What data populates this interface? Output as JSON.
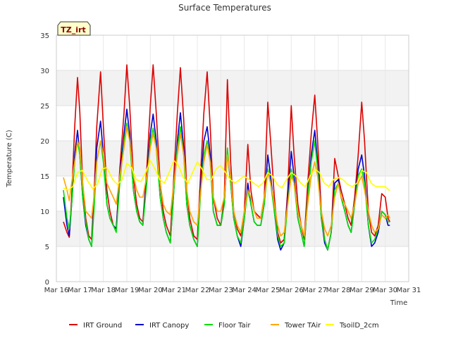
{
  "chart_data": {
    "type": "line",
    "title": "Surface Temperatures",
    "badge": "TZ_irt",
    "xlabel": "Time",
    "ylabel": "Temperature (C)",
    "xlim": [
      16,
      31
    ],
    "ylim": [
      0,
      35
    ],
    "x_ticks": [
      16,
      17,
      18,
      19,
      20,
      21,
      22,
      23,
      24,
      25,
      26,
      27,
      28,
      29,
      30,
      31
    ],
    "x_tick_labels": [
      "Mar 16",
      "Mar 17",
      "Mar 18",
      "Mar 19",
      "Mar 20",
      "Mar 21",
      "Mar 22",
      "Mar 23",
      "Mar 24",
      "Mar 25",
      "Mar 26",
      "Mar 27",
      "Mar 28",
      "Mar 29",
      "Mar 30",
      "Mar 31"
    ],
    "y_ticks": [
      0,
      5,
      10,
      15,
      20,
      25,
      30,
      35
    ],
    "y_tick_labels": [
      "0",
      "5",
      "10",
      "15",
      "20",
      "25",
      "30",
      "35"
    ],
    "grid": true,
    "legend_position": "bottom",
    "series": [
      {
        "name": "IRT Ground",
        "color": "#dd0000",
        "x": [
          16.3,
          16.45,
          16.55,
          16.65,
          16.78,
          16.9,
          17.0,
          17.12,
          17.25,
          17.38,
          17.5,
          17.6,
          17.72,
          17.88,
          18.0,
          18.15,
          18.28,
          18.42,
          18.55,
          18.7,
          18.88,
          19.0,
          19.12,
          19.28,
          19.42,
          19.55,
          19.68,
          19.85,
          20.0,
          20.12,
          20.25,
          20.42,
          20.55,
          20.68,
          20.85,
          21.0,
          21.15,
          21.28,
          21.42,
          21.55,
          21.68,
          21.85,
          22.0,
          22.15,
          22.28,
          22.42,
          22.55,
          22.68,
          22.85,
          23.0,
          23.15,
          23.28,
          23.42,
          23.55,
          23.7,
          23.85,
          24.0,
          24.15,
          24.28,
          24.42,
          24.55,
          24.7,
          24.85,
          25.0,
          25.12,
          25.28,
          25.42,
          25.55,
          25.7,
          25.85,
          26.0,
          26.12,
          26.28,
          26.42,
          26.55,
          26.7,
          26.85,
          27.0,
          27.12,
          27.28,
          27.42,
          27.55,
          27.7,
          27.85,
          28.0,
          28.12,
          28.28,
          28.42,
          28.55,
          28.7,
          28.85,
          29.0,
          29.12,
          29.28,
          29.42,
          29.55,
          29.7,
          29.85,
          30.0,
          30.12,
          30.2
        ],
        "values": [
          8.5,
          7.0,
          6.3,
          12.0,
          22.0,
          29.0,
          24.0,
          14.0,
          9.0,
          6.5,
          6.0,
          12.0,
          22.0,
          29.8,
          22.0,
          13.0,
          10.0,
          8.0,
          7.5,
          16.0,
          24.0,
          30.8,
          25.0,
          15.0,
          11.0,
          9.0,
          8.5,
          16.0,
          25.0,
          30.8,
          24.0,
          14.0,
          10.0,
          8.0,
          6.5,
          15.0,
          24.0,
          30.4,
          23.0,
          13.0,
          9.0,
          6.5,
          6.0,
          16.0,
          24.0,
          29.8,
          22.0,
          12.0,
          9.0,
          8.0,
          12.0,
          28.7,
          17.0,
          10.0,
          7.5,
          6.5,
          10.0,
          19.5,
          13.0,
          10.0,
          9.5,
          9.0,
          12.0,
          25.5,
          20.0,
          12.0,
          7.0,
          5.5,
          6.0,
          13.0,
          25.0,
          18.0,
          11.0,
          8.0,
          6.0,
          14.0,
          21.0,
          26.5,
          20.0,
          10.0,
          6.0,
          4.5,
          7.0,
          17.5,
          15.0,
          13.0,
          11.0,
          9.0,
          8.0,
          12.0,
          18.0,
          25.5,
          20.0,
          10.0,
          7.0,
          6.5,
          8.0,
          12.5,
          12.0,
          9.0,
          8.5
        ]
      },
      {
        "name": "IRT Canopy",
        "color": "#0000cc",
        "x": [
          16.3,
          16.45,
          16.55,
          16.65,
          16.78,
          16.9,
          17.0,
          17.12,
          17.25,
          17.38,
          17.5,
          17.6,
          17.72,
          17.88,
          18.0,
          18.15,
          18.28,
          18.42,
          18.55,
          18.7,
          18.88,
          19.0,
          19.12,
          19.28,
          19.42,
          19.55,
          19.68,
          19.85,
          20.0,
          20.12,
          20.25,
          20.42,
          20.55,
          20.68,
          20.85,
          21.0,
          21.15,
          21.28,
          21.42,
          21.55,
          21.68,
          21.85,
          22.0,
          22.15,
          22.28,
          22.42,
          22.55,
          22.68,
          22.85,
          23.0,
          23.15,
          23.28,
          23.42,
          23.55,
          23.7,
          23.85,
          24.0,
          24.15,
          24.28,
          24.42,
          24.55,
          24.7,
          24.85,
          25.0,
          25.12,
          25.28,
          25.42,
          25.55,
          25.7,
          25.85,
          26.0,
          26.12,
          26.28,
          26.42,
          26.55,
          26.7,
          26.85,
          27.0,
          27.12,
          27.28,
          27.42,
          27.55,
          27.7,
          27.85,
          28.0,
          28.12,
          28.28,
          28.42,
          28.55,
          28.7,
          28.85,
          29.0,
          29.12,
          29.28,
          29.42,
          29.55,
          29.7,
          29.85,
          30.0,
          30.12,
          30.2
        ],
        "values": [
          12.0,
          8.0,
          6.5,
          11.0,
          18.0,
          21.5,
          18.0,
          12.0,
          8.0,
          6.0,
          5.0,
          11.0,
          19.0,
          22.8,
          18.0,
          11.0,
          9.0,
          8.0,
          7.5,
          15.0,
          21.0,
          24.5,
          21.0,
          13.0,
          10.0,
          8.5,
          8.0,
          15.0,
          21.0,
          23.8,
          20.0,
          12.0,
          9.0,
          7.0,
          5.5,
          13.0,
          20.0,
          24.0,
          19.0,
          11.0,
          8.0,
          6.0,
          5.0,
          14.0,
          20.0,
          22.0,
          18.0,
          10.0,
          8.0,
          8.0,
          11.0,
          18.5,
          14.0,
          9.0,
          6.5,
          5.0,
          9.0,
          14.0,
          11.0,
          8.5,
          8.0,
          8.0,
          11.0,
          18.0,
          15.0,
          10.0,
          6.0,
          4.5,
          5.5,
          12.0,
          18.5,
          15.0,
          9.0,
          7.0,
          5.0,
          12.0,
          18.0,
          21.5,
          17.0,
          9.0,
          5.5,
          4.5,
          7.0,
          14.0,
          14.5,
          12.0,
          10.0,
          8.0,
          7.0,
          11.0,
          16.0,
          18.0,
          15.0,
          8.0,
          5.0,
          5.5,
          7.0,
          10.0,
          9.5,
          8.0,
          8.0
        ]
      },
      {
        "name": "Floor Tair",
        "color": "#00dd00",
        "x": [
          16.3,
          16.45,
          16.55,
          16.65,
          16.78,
          16.9,
          17.0,
          17.12,
          17.25,
          17.38,
          17.5,
          17.6,
          17.72,
          17.88,
          18.0,
          18.15,
          18.28,
          18.42,
          18.55,
          18.7,
          18.88,
          19.0,
          19.12,
          19.28,
          19.42,
          19.55,
          19.68,
          19.85,
          20.0,
          20.12,
          20.25,
          20.42,
          20.55,
          20.68,
          20.85,
          21.0,
          21.15,
          21.28,
          21.42,
          21.55,
          21.68,
          21.85,
          22.0,
          22.15,
          22.28,
          22.42,
          22.55,
          22.68,
          22.85,
          23.0,
          23.15,
          23.28,
          23.42,
          23.55,
          23.7,
          23.85,
          24.0,
          24.15,
          24.28,
          24.42,
          24.55,
          24.7,
          24.85,
          25.0,
          25.12,
          25.28,
          25.42,
          25.55,
          25.7,
          25.85,
          26.0,
          26.12,
          26.28,
          26.42,
          26.55,
          26.7,
          26.85,
          27.0,
          27.12,
          27.28,
          27.42,
          27.55,
          27.7,
          27.85,
          28.0,
          28.12,
          28.28,
          28.42,
          28.55,
          28.7,
          28.85,
          29.0,
          29.12,
          29.28,
          29.42,
          29.55,
          29.7,
          29.85,
          30.0,
          30.12,
          30.2
        ],
        "values": [
          13.0,
          9.0,
          7.5,
          11.0,
          17.0,
          20.0,
          18.0,
          12.0,
          8.5,
          6.0,
          5.0,
          10.0,
          17.0,
          20.0,
          17.0,
          11.0,
          9.0,
          8.0,
          7.0,
          14.0,
          20.0,
          22.5,
          20.0,
          13.0,
          10.0,
          8.5,
          8.0,
          14.0,
          20.0,
          21.8,
          19.0,
          12.0,
          9.0,
          7.0,
          5.5,
          13.0,
          19.0,
          22.0,
          18.0,
          11.0,
          8.0,
          6.0,
          5.0,
          13.0,
          18.0,
          20.0,
          17.0,
          10.0,
          8.0,
          8.0,
          11.0,
          19.0,
          14.0,
          9.0,
          6.5,
          5.5,
          9.0,
          13.0,
          11.0,
          8.5,
          8.0,
          8.0,
          11.0,
          16.0,
          14.0,
          10.0,
          6.5,
          5.0,
          5.5,
          11.0,
          16.0,
          14.0,
          9.0,
          7.0,
          5.0,
          12.0,
          17.0,
          20.0,
          16.0,
          9.0,
          6.0,
          4.5,
          7.0,
          13.0,
          14.0,
          12.0,
          10.0,
          8.0,
          7.0,
          11.0,
          15.0,
          16.0,
          14.0,
          8.0,
          5.5,
          6.0,
          7.5,
          10.0,
          9.5,
          8.5,
          8.5
        ]
      },
      {
        "name": "Tower TAir",
        "color": "#ffa500",
        "x": [
          16.3,
          16.45,
          16.55,
          16.65,
          16.78,
          16.9,
          17.0,
          17.12,
          17.25,
          17.38,
          17.5,
          17.6,
          17.72,
          17.88,
          18.0,
          18.15,
          18.28,
          18.42,
          18.55,
          18.7,
          18.88,
          19.0,
          19.12,
          19.28,
          19.42,
          19.55,
          19.68,
          19.85,
          20.0,
          20.12,
          20.25,
          20.42,
          20.55,
          20.68,
          20.85,
          21.0,
          21.15,
          21.28,
          21.42,
          21.55,
          21.68,
          21.85,
          22.0,
          22.15,
          22.28,
          22.42,
          22.55,
          22.68,
          22.85,
          23.0,
          23.15,
          23.28,
          23.42,
          23.55,
          23.7,
          23.85,
          24.0,
          24.15,
          24.28,
          24.42,
          24.55,
          24.7,
          24.85,
          25.0,
          25.12,
          25.28,
          25.42,
          25.55,
          25.7,
          25.85,
          26.0,
          26.12,
          26.28,
          26.42,
          26.55,
          26.7,
          26.85,
          27.0,
          27.12,
          27.28,
          27.42,
          27.55,
          27.7,
          27.85,
          28.0,
          28.12,
          28.28,
          28.42,
          28.55,
          28.7,
          28.85,
          29.0,
          29.12,
          29.28,
          29.42,
          29.55,
          29.7,
          29.85,
          30.0,
          30.12,
          30.2
        ],
        "values": [
          14.8,
          13.0,
          11.5,
          14.0,
          17.0,
          20.0,
          19.0,
          14.0,
          10.0,
          9.5,
          9.0,
          12.0,
          17.0,
          20.0,
          18.0,
          14.0,
          13.0,
          12.0,
          11.0,
          15.0,
          19.0,
          22.0,
          20.0,
          15.0,
          13.0,
          12.0,
          12.0,
          15.0,
          19.0,
          21.0,
          19.0,
          14.0,
          11.0,
          10.0,
          9.5,
          14.0,
          18.0,
          21.0,
          18.0,
          13.0,
          10.0,
          8.5,
          8.0,
          13.0,
          17.0,
          19.5,
          17.0,
          12.0,
          10.0,
          10.0,
          12.0,
          18.0,
          15.0,
          10.0,
          8.0,
          7.0,
          10.0,
          13.0,
          12.0,
          10.0,
          9.0,
          9.0,
          12.0,
          15.5,
          14.0,
          11.0,
          8.0,
          6.5,
          7.0,
          11.0,
          15.0,
          14.0,
          10.0,
          8.0,
          6.5,
          11.0,
          15.0,
          17.0,
          15.0,
          10.0,
          7.5,
          6.5,
          8.0,
          12.0,
          14.0,
          12.0,
          11.0,
          10.0,
          9.0,
          11.0,
          14.0,
          15.0,
          13.0,
          10.0,
          8.0,
          7.0,
          7.5,
          9.5,
          9.0,
          9.5,
          9.0
        ]
      },
      {
        "name": "TsoilD_2cm",
        "color": "#ffff00",
        "x": [
          16.3,
          16.5,
          16.7,
          16.9,
          17.1,
          17.35,
          17.55,
          17.75,
          17.95,
          18.15,
          18.4,
          18.6,
          18.8,
          19.0,
          19.2,
          19.4,
          19.6,
          19.8,
          20.0,
          20.2,
          20.4,
          20.6,
          20.8,
          21.0,
          21.2,
          21.4,
          21.6,
          21.8,
          22.0,
          22.2,
          22.4,
          22.6,
          22.8,
          23.0,
          23.2,
          23.4,
          23.6,
          23.8,
          24.0,
          24.2,
          24.4,
          24.6,
          24.8,
          25.0,
          25.2,
          25.4,
          25.6,
          25.8,
          26.0,
          26.2,
          26.4,
          26.6,
          26.8,
          27.0,
          27.2,
          27.4,
          27.6,
          27.8,
          28.0,
          28.2,
          28.4,
          28.6,
          28.8,
          29.0,
          29.2,
          29.4,
          29.6,
          29.8,
          30.0,
          30.2
        ],
        "values": [
          13.3,
          13.0,
          13.5,
          15.5,
          15.8,
          14.2,
          13.2,
          13.8,
          16.0,
          16.2,
          14.5,
          13.8,
          14.5,
          16.8,
          16.2,
          14.5,
          14.2,
          15.5,
          17.2,
          16.0,
          14.5,
          14.0,
          15.5,
          17.2,
          16.5,
          14.8,
          14.0,
          15.5,
          17.0,
          16.0,
          14.5,
          14.5,
          16.0,
          16.5,
          15.5,
          14.5,
          14.0,
          14.5,
          15.0,
          14.5,
          14.0,
          13.5,
          14.0,
          15.5,
          15.0,
          13.8,
          13.3,
          14.5,
          15.5,
          15.0,
          14.0,
          13.5,
          15.0,
          16.0,
          15.5,
          14.0,
          13.5,
          14.5,
          14.8,
          14.5,
          13.8,
          13.5,
          14.0,
          15.8,
          15.5,
          14.0,
          13.5,
          13.5,
          13.5,
          12.9
        ]
      }
    ]
  }
}
